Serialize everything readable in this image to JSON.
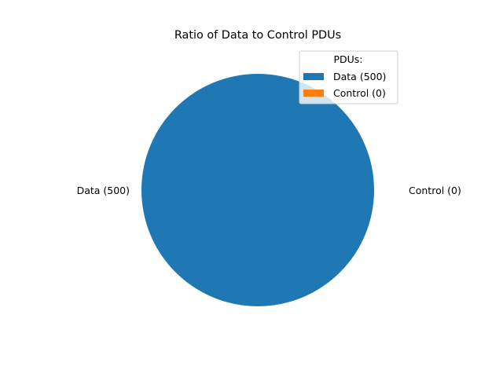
{
  "chart_data": {
    "type": "pie",
    "title": "Ratio of Data to Control PDUs",
    "slices": [
      {
        "label": "Data (500)",
        "value": 500,
        "color": "#1f77b4"
      },
      {
        "label": "Control (0)",
        "value": 0,
        "color": "#ff7f0e"
      }
    ],
    "legend": {
      "title": "PDUs:",
      "placement": "top-right",
      "entries": [
        "Data (500)",
        "Control (0)"
      ]
    }
  }
}
